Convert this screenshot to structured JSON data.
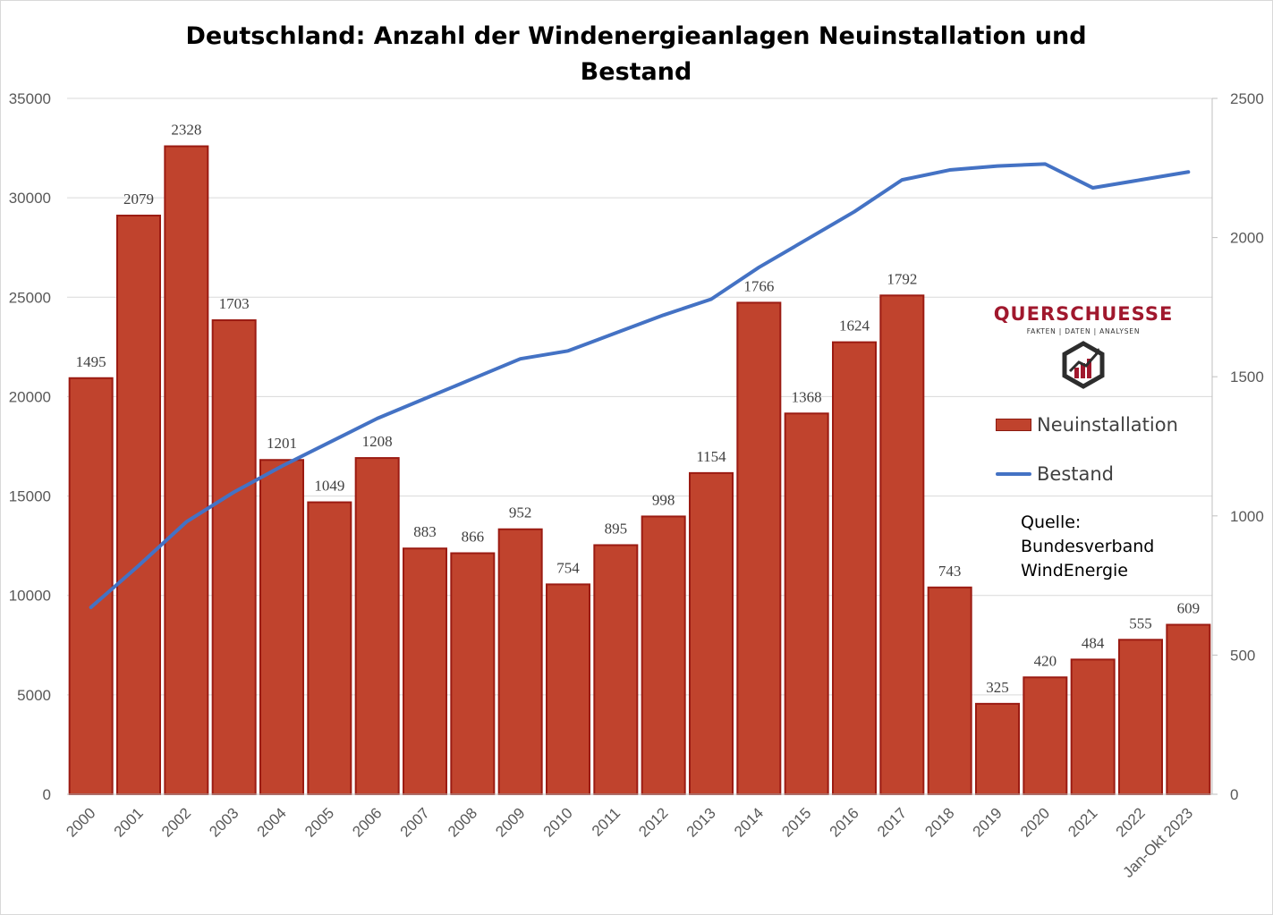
{
  "title": "Deutschland: Anzahl der Windenergieanlagen  Neuinstallation und Bestand",
  "logo": {
    "name": "QUERSCHUESSE",
    "tagline": "FAKTEN | DATEN | ANALYSEN",
    "icon": "chart-hexagon-icon",
    "color": "#a0182d"
  },
  "legend": {
    "bar_label": "Neuinstallation",
    "line_label": "Bestand"
  },
  "source": {
    "label": "Quelle:",
    "line1": "Bundesverband",
    "line2": "WindEnergie"
  },
  "chart_data": {
    "type": "bar",
    "title": "Deutschland: Anzahl der Windenergieanlagen  Neuinstallation und Bestand",
    "categories": [
      "2000",
      "2001",
      "2002",
      "2003",
      "2004",
      "2005",
      "2006",
      "2007",
      "2008",
      "2009",
      "2010",
      "2011",
      "2012",
      "2013",
      "2014",
      "2015",
      "2016",
      "2017",
      "2018",
      "2019",
      "2020",
      "2021",
      "2022",
      "Jan-Okt 2023"
    ],
    "series": [
      {
        "name": "Neuinstallation",
        "type": "bar",
        "axis": "right",
        "color": "#c0432d",
        "values": [
          1495,
          2079,
          2328,
          1703,
          1201,
          1049,
          1208,
          883,
          866,
          952,
          754,
          895,
          998,
          1154,
          1766,
          1368,
          1624,
          1792,
          743,
          325,
          420,
          484,
          555,
          609
        ]
      },
      {
        "name": "Bestand",
        "type": "line",
        "axis": "left",
        "color": "#4472c4",
        "values": [
          9400,
          11500,
          13700,
          15200,
          16500,
          17700,
          18900,
          19900,
          20900,
          21900,
          22300,
          23200,
          24100,
          24900,
          26500,
          27900,
          29300,
          30900,
          31400,
          31600,
          31700,
          30500,
          30900,
          31300
        ]
      }
    ],
    "y_left": {
      "min": 0,
      "max": 35000,
      "ticks": [
        0,
        5000,
        10000,
        15000,
        20000,
        25000,
        30000,
        35000
      ]
    },
    "y_right": {
      "min": 0,
      "max": 2500,
      "ticks": [
        0,
        500,
        1000,
        1500,
        2000,
        2500
      ]
    },
    "grid": true,
    "data_labels": true,
    "legend_position": "right"
  }
}
